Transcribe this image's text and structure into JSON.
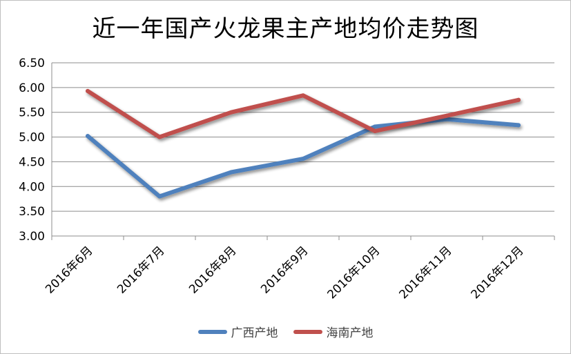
{
  "chart_data": {
    "type": "line",
    "title": "近一年国产火龙果主产地均价走势图",
    "xlabel": "",
    "ylabel": "",
    "categories": [
      "2016年6月",
      "2016年7月",
      "2016年8月",
      "2016年9月",
      "2016年10月",
      "2016年11月",
      "2016年12月"
    ],
    "ylim": [
      3.0,
      6.5
    ],
    "yticks": [
      "3.00",
      "3.50",
      "4.00",
      "4.50",
      "5.00",
      "5.50",
      "6.00",
      "6.50"
    ],
    "grid": true,
    "legend_position": "bottom",
    "series": [
      {
        "name": "广西产地",
        "color": "#4f81bd",
        "values": [
          5.02,
          3.8,
          4.29,
          4.56,
          5.21,
          5.36,
          5.24
        ]
      },
      {
        "name": "海南产地",
        "color": "#c0504d",
        "values": [
          5.93,
          5.0,
          5.5,
          5.84,
          5.12,
          5.43,
          5.75
        ]
      }
    ]
  }
}
